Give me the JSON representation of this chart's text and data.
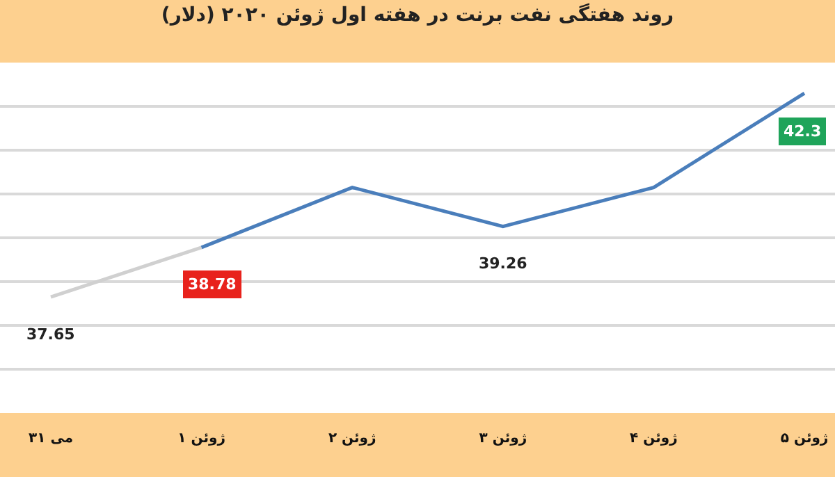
{
  "chart_data": {
    "type": "line",
    "title": "روند هفتگی نفت برنت در هفته اول ژوئن ۲۰۲۰ (دلار)",
    "categories": [
      "۳۱ می",
      "۱ ژوئن",
      "۲ ژوئن",
      "۳ ژوئن",
      "۴ ژوئن",
      "۵ ژوئن"
    ],
    "series": [
      {
        "color": "#d0d0d0",
        "values": [
          37.65,
          38.78,
          null,
          null,
          null,
          null
        ],
        "value_labels": [
          "37.65",
          null,
          null,
          null,
          null,
          null
        ]
      },
      {
        "color": "#4a7ebb",
        "values": [
          null,
          38.78,
          40.15,
          39.26,
          40.15,
          42.3
        ],
        "value_labels": [
          null,
          "38.78",
          null,
          "39.26",
          null,
          "42.3"
        ]
      }
    ],
    "ylim": [
      35,
      43
    ],
    "yticks": [
      {
        "value": 36,
        "label": null
      },
      {
        "value": 37,
        "label": null
      },
      {
        "value": 38,
        "label": null
      },
      {
        "value": 39,
        "label": null
      },
      {
        "value": 40,
        "label": null
      },
      {
        "value": 41,
        "label": null
      },
      {
        "value": 42,
        "label": null
      }
    ],
    "grid": "y",
    "marker": "none",
    "line_style": "solid",
    "tick_labels": "x"
  }
}
